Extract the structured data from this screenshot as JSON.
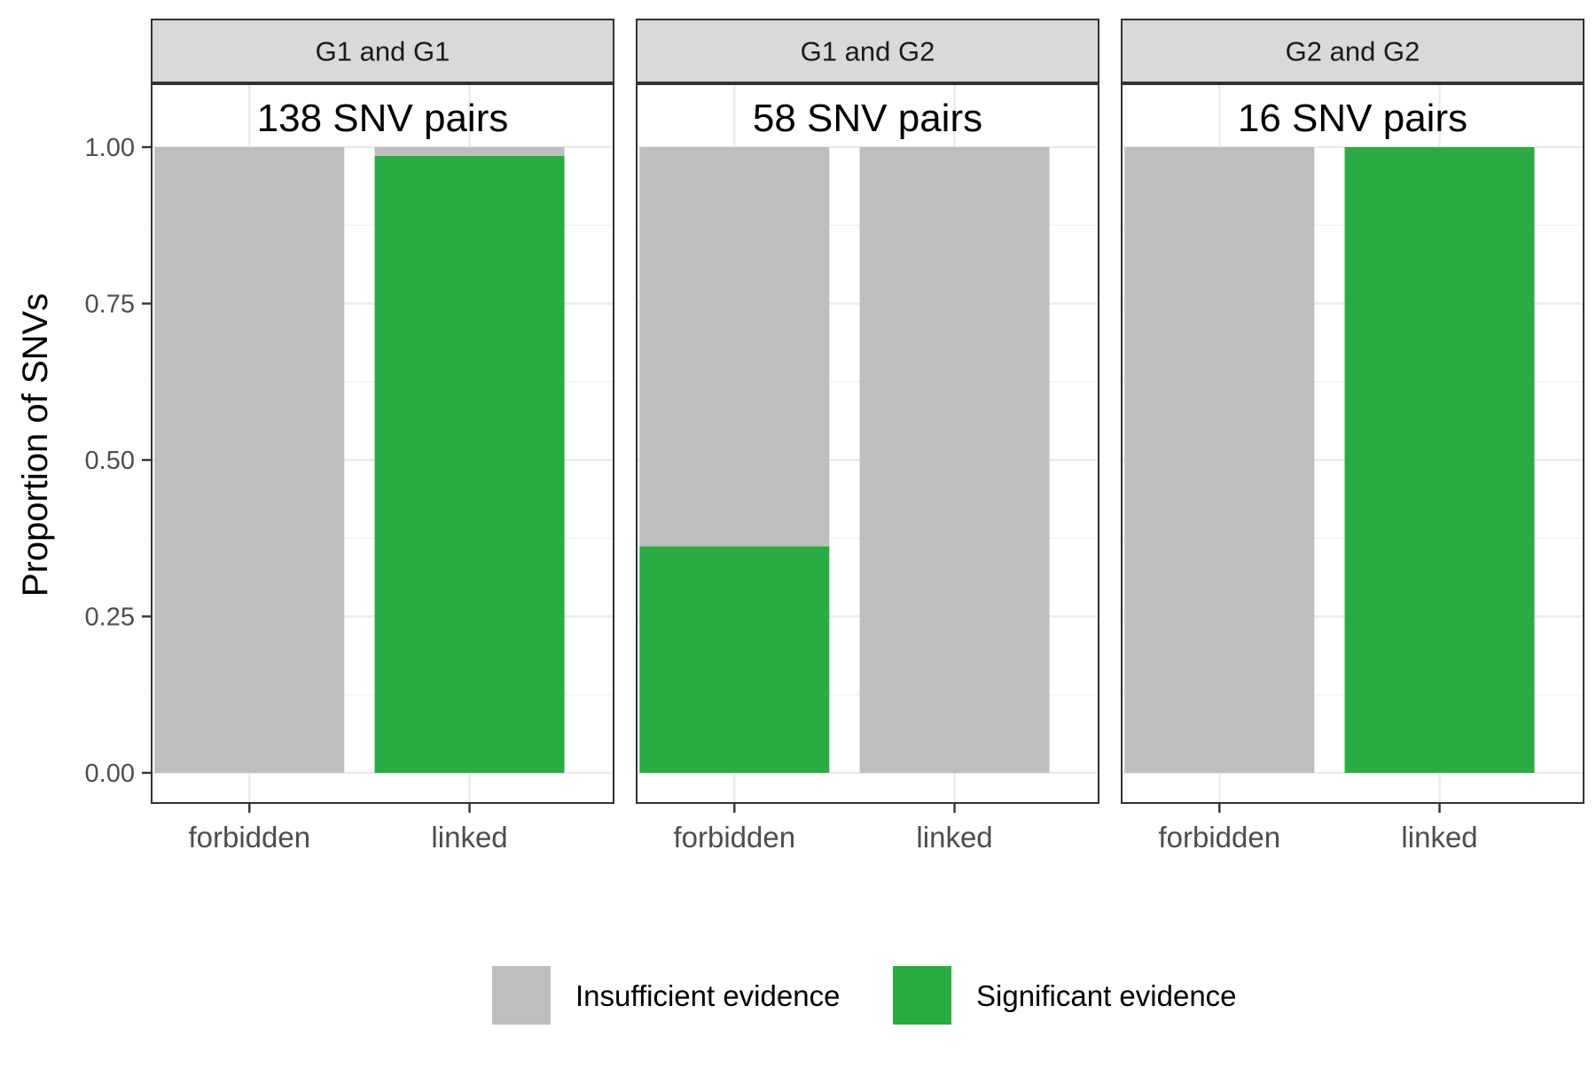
{
  "chart_data": {
    "type": "bar",
    "stacked": true,
    "ylabel": "Proportion of SNVs",
    "ylim": [
      0,
      1.1
    ],
    "yticks": [
      "0.00",
      "0.25",
      "0.50",
      "0.75",
      "1.00"
    ],
    "ytick_values": [
      0,
      0.25,
      0.5,
      0.75,
      1.0
    ],
    "categories": [
      "forbidden",
      "linked"
    ],
    "grid": true,
    "legend_position": "bottom",
    "series": [
      {
        "name": "Insufficient evidence",
        "color": "#bebebe"
      },
      {
        "name": "Significant evidence",
        "color": "#2aab43"
      }
    ],
    "panels": [
      {
        "strip": "G1 and G1",
        "annotation": "138 SNV pairs",
        "significant": [
          0.0,
          0.986
        ],
        "insufficient": [
          1.0,
          0.014
        ]
      },
      {
        "strip": "G1 and G2",
        "annotation": "58 SNV pairs",
        "significant": [
          0.362,
          0.0
        ],
        "insufficient": [
          0.638,
          1.0
        ]
      },
      {
        "strip": "G2 and G2",
        "annotation": "16 SNV pairs",
        "significant": [
          0.0,
          1.0
        ],
        "insufficient": [
          1.0,
          0.0
        ]
      }
    ]
  }
}
